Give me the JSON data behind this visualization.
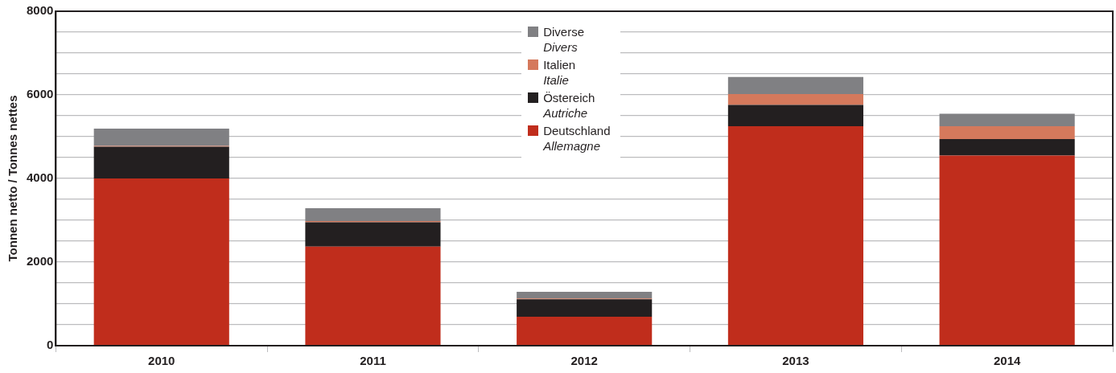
{
  "chart_data": {
    "type": "bar",
    "stacked": true,
    "ylabel": "Tonnen netto / Tonnes nettes",
    "categories": [
      "2010",
      "2011",
      "2012",
      "2013",
      "2014"
    ],
    "series": [
      {
        "name": "Deutschland\nAllemagne",
        "color": "#c02d1c",
        "values": [
          4000,
          2370,
          690,
          5250,
          4550
        ]
      },
      {
        "name": "Östereich\nAutriche",
        "color": "#231f20",
        "values": [
          760,
          580,
          420,
          510,
          390
        ]
      },
      {
        "name": "Italien\nItalie",
        "color": "#d5795c",
        "values": [
          20,
          30,
          20,
          260,
          310
        ]
      },
      {
        "name": "Diverse\nDivers",
        "color": "#808083",
        "values": [
          410,
          310,
          160,
          410,
          300
        ]
      }
    ],
    "ylim": [
      0,
      8000
    ],
    "yticks": [
      0,
      {
        "value": 500,
        "label": null
      },
      {
        "value": 1000,
        "label": null
      },
      {
        "value": 1500,
        "label": null
      },
      2000,
      {
        "value": 2500,
        "label": null
      },
      {
        "value": 3000,
        "label": null
      },
      {
        "value": 3500,
        "label": null
      },
      4000,
      {
        "value": 4500,
        "label": null
      },
      {
        "value": 5000,
        "label": null
      },
      {
        "value": 5500,
        "label": null
      },
      6000,
      {
        "value": 6500,
        "label": null
      },
      {
        "value": 7000,
        "label": null
      },
      {
        "value": 7500,
        "label": null
      },
      8000
    ],
    "grid": "y",
    "legend": "top"
  }
}
